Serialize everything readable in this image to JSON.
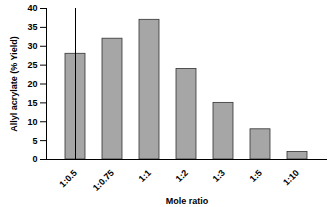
{
  "chart_data": {
    "type": "bar",
    "x_label": "Mole ratio",
    "y_label": "Allyl acrylate (% Yield)",
    "categories": [
      "1:0.5",
      "1:0.75",
      "1:1",
      "1:2",
      "1:3",
      "1:5",
      "1:10"
    ],
    "values": [
      28,
      32,
      37,
      24,
      15,
      8,
      2
    ],
    "color": "#a6a6a6",
    "ylim": [
      0,
      40
    ],
    "yticks": [
      0,
      5,
      10,
      15,
      20,
      25,
      30,
      35,
      40
    ],
    "grid": false
  }
}
